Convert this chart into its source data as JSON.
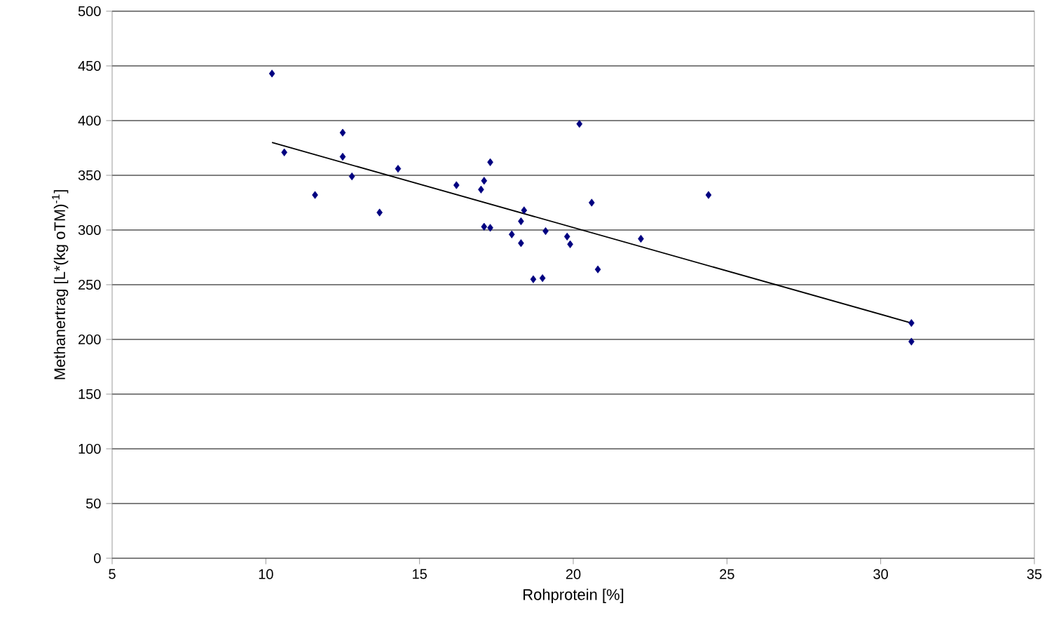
{
  "chart_data": {
    "type": "scatter",
    "xlabel": "Rohprotein [%]",
    "ylabel": "Methanertrag [L*(kg oTM)$^{-1}$]",
    "xlim": [
      5,
      35
    ],
    "xticks": [
      5,
      10,
      15,
      20,
      25,
      30,
      35
    ],
    "ylim": [
      0,
      500
    ],
    "yticks": [
      0,
      50,
      100,
      150,
      200,
      250,
      300,
      350,
      400,
      450,
      500
    ],
    "grid": "y",
    "marker": "diamond",
    "series": [
      {
        "color": "#000080",
        "x": [
          10.2,
          10.6,
          11.6,
          12.5,
          12.5,
          12.8,
          13.7,
          14.3,
          16.2,
          17.0,
          17.1,
          17.1,
          17.3,
          17.3,
          18.0,
          18.3,
          18.3,
          18.4,
          18.7,
          19.0,
          19.1,
          19.8,
          19.9,
          20.2,
          20.6,
          20.8,
          22.2,
          24.4,
          31.0,
          31.0
        ],
        "values": [
          443,
          371,
          332,
          389,
          367,
          349,
          316,
          356,
          341,
          337,
          345,
          303,
          302,
          362,
          296,
          308,
          288,
          318,
          255,
          256,
          299,
          294,
          287,
          397,
          325,
          264,
          292,
          332,
          215,
          198
        ]
      },
      {
        "type": "line",
        "marker": "none",
        "color": "#000000",
        "x": [
          10.2,
          31.0
        ],
        "values": [
          380,
          215
        ]
      }
    ]
  }
}
